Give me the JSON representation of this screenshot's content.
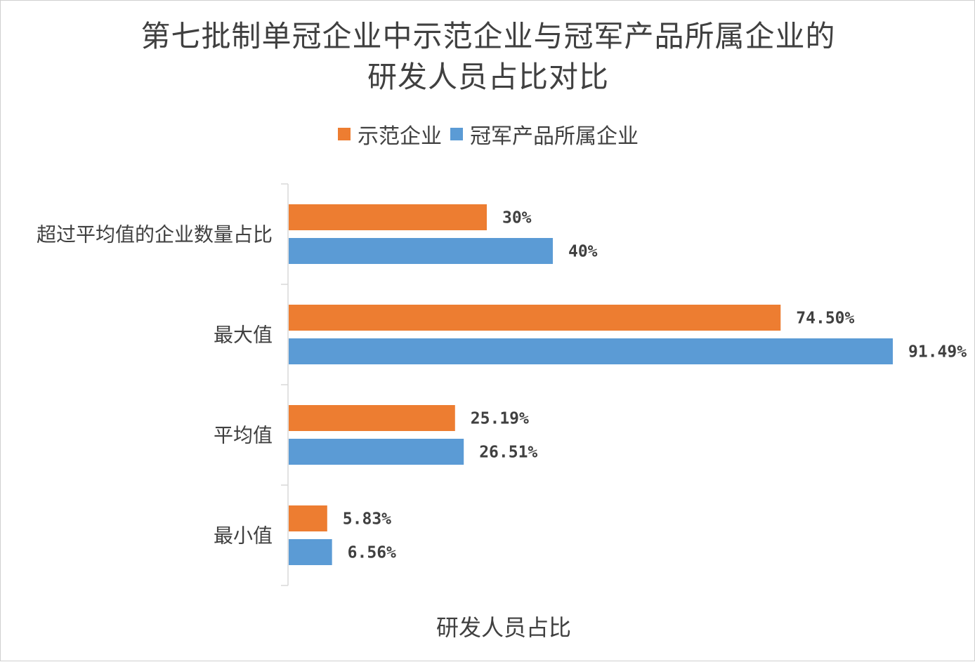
{
  "chart_data": {
    "type": "bar",
    "orientation": "horizontal",
    "title": [
      "第七批制单冠企业中示范企业与冠军产品所属企业的",
      "研发人员占比对比"
    ],
    "xlabel": "研发人员占比",
    "ylabel": "",
    "categories": [
      "超过平均值的企业数量占比",
      "最大值",
      "平均值",
      "最小值"
    ],
    "series": [
      {
        "name": "示范企业",
        "color": "#ED7D31",
        "values": [
          30,
          74.5,
          25.19,
          5.83
        ],
        "labels": [
          "30%",
          "74.50%",
          "25.19%",
          "5.83%"
        ]
      },
      {
        "name": "冠军产品所属企业",
        "color": "#5B9BD5",
        "values": [
          40,
          91.49,
          26.51,
          6.56
        ],
        "labels": [
          "40%",
          "91.49%",
          "26.51%",
          "6.56%"
        ]
      }
    ],
    "xlim": [
      0,
      100
    ],
    "grid": false,
    "legend_position": "top"
  }
}
